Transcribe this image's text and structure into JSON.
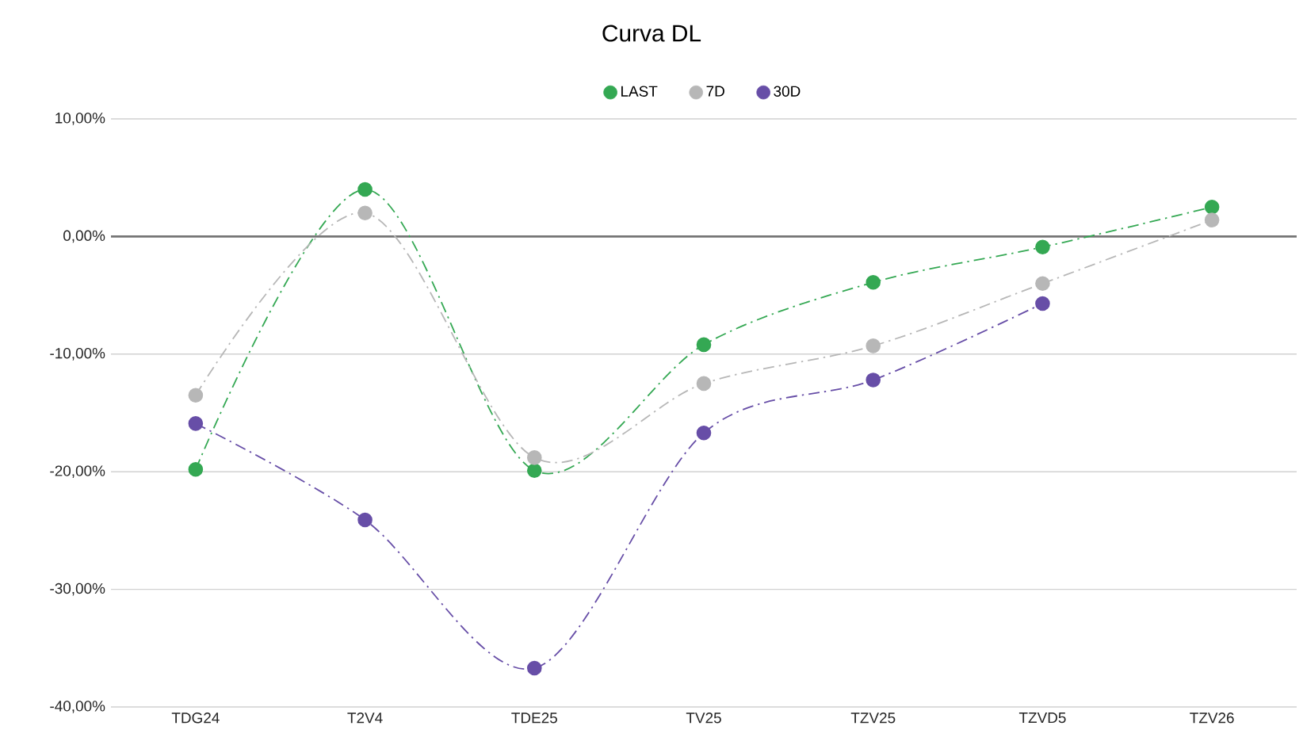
{
  "chart_data": {
    "type": "line",
    "title": "Curva DL",
    "categories": [
      "TDG24",
      "T2V4",
      "TDE25",
      "TV25",
      "TZV25",
      "TZVD5",
      "TZV26"
    ],
    "series": [
      {
        "name": "LAST",
        "color": "#34a853",
        "values": [
          -19.8,
          4.0,
          -19.9,
          -9.2,
          -3.9,
          -0.9,
          2.5
        ]
      },
      {
        "name": "7D",
        "color": "#b7b7b7",
        "values": [
          -13.5,
          2.0,
          -18.8,
          -12.5,
          -9.3,
          -4.0,
          1.4
        ]
      },
      {
        "name": "30D",
        "color": "#674ea7",
        "values": [
          -15.9,
          -24.1,
          -36.7,
          -16.7,
          -12.2,
          -5.7,
          null
        ]
      }
    ],
    "ylim": [
      -40,
      10
    ],
    "yticks": [
      {
        "value": -40,
        "label": "-40,00%"
      },
      {
        "value": -30,
        "label": "-30,00%"
      },
      {
        "value": -20,
        "label": "-20,00%"
      },
      {
        "value": -10,
        "label": "-10,00%"
      },
      {
        "value": 0,
        "label": "0,00%"
      },
      {
        "value": 10,
        "label": "10,00%"
      }
    ],
    "ref_lines": [
      {
        "axis": "y",
        "value": 0,
        "color": "#757575"
      }
    ],
    "grid": "y",
    "legend": "top",
    "marker": "circle",
    "line_style": "dashed"
  }
}
